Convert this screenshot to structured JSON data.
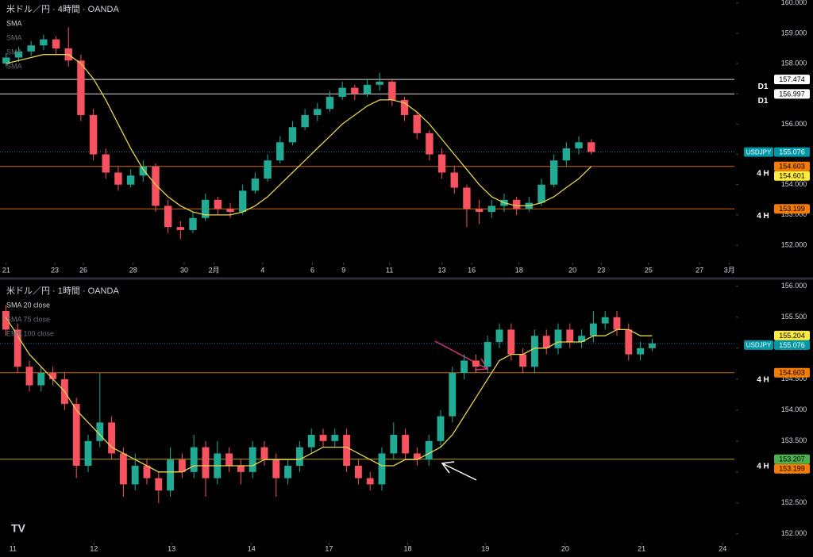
{
  "chart_data": [
    {
      "type": "candlestick",
      "title": "米ドル／円 · 4時間 · OANDA",
      "indicators": [
        {
          "name": "SMA",
          "visible": true
        },
        {
          "name": "SMA",
          "visible": false
        },
        {
          "name": "SMA",
          "visible": false
        },
        {
          "name": "SMA",
          "visible": false
        }
      ],
      "up_color": "#22ab94",
      "down_color": "#f7525f",
      "sma_color": "#e8d44d",
      "ylim": [
        151.45,
        160.1
      ],
      "yticks": [
        {
          "value": 160,
          "label": "160.000"
        },
        {
          "value": 159,
          "label": "159.000"
        },
        {
          "value": 158,
          "label": "158.000"
        },
        {
          "value": 157,
          "label": "157.000"
        },
        {
          "value": 156,
          "label": "156.000"
        },
        {
          "value": 155,
          "label": "155.000"
        },
        {
          "value": 154,
          "label": "154.000"
        },
        {
          "value": 153,
          "label": "153.000"
        },
        {
          "value": 152,
          "label": "152.000"
        }
      ],
      "xlim": [
        -0.5,
        58.5
      ],
      "xticks": [
        {
          "value": 0,
          "label": "21"
        },
        {
          "value": 3.9,
          "label": "23"
        },
        {
          "value": 6.2,
          "label": "26"
        },
        {
          "value": 10.2,
          "label": "28"
        },
        {
          "value": 14.3,
          "label": "30"
        },
        {
          "value": 16.7,
          "label": "2月"
        },
        {
          "value": 20.6,
          "label": "4"
        },
        {
          "value": 24.6,
          "label": "6"
        },
        {
          "value": 27.1,
          "label": "9"
        },
        {
          "value": 30.8,
          "label": "11"
        },
        {
          "value": 35.0,
          "label": "13"
        },
        {
          "value": 37.4,
          "label": "16"
        },
        {
          "value": 41.2,
          "label": "18"
        },
        {
          "value": 45.5,
          "label": "20"
        },
        {
          "value": 47.8,
          "label": "23"
        },
        {
          "value": 51.6,
          "label": "25"
        },
        {
          "value": 55.7,
          "label": "27"
        },
        {
          "value": 58.1,
          "label": "3月"
        }
      ],
      "candles": [
        [
          158.0,
          158.35,
          157.9,
          158.2
        ],
        [
          158.2,
          158.55,
          158.05,
          158.4
        ],
        [
          158.4,
          158.75,
          158.25,
          158.6
        ],
        [
          158.6,
          158.95,
          158.45,
          158.8
        ],
        [
          158.8,
          158.9,
          158.3,
          158.5
        ],
        [
          158.5,
          159.2,
          157.9,
          158.1
        ],
        [
          158.1,
          158.3,
          156.1,
          156.3
        ],
        [
          156.3,
          156.5,
          154.8,
          155.0
        ],
        [
          155.0,
          155.2,
          154.2,
          154.4
        ],
        [
          154.4,
          154.6,
          153.8,
          154.0
        ],
        [
          154.0,
          154.5,
          153.9,
          154.3
        ],
        [
          154.3,
          154.8,
          154.1,
          154.6
        ],
        [
          154.6,
          154.7,
          153.1,
          153.3
        ],
        [
          153.3,
          153.5,
          152.4,
          152.6
        ],
        [
          152.6,
          152.8,
          152.2,
          152.5
        ],
        [
          152.5,
          153.1,
          152.4,
          152.9
        ],
        [
          152.9,
          153.7,
          152.8,
          153.5
        ],
        [
          153.5,
          153.6,
          153.0,
          153.2
        ],
        [
          153.2,
          153.4,
          152.9,
          153.1
        ],
        [
          153.1,
          154.0,
          153.0,
          153.8
        ],
        [
          153.8,
          154.4,
          153.7,
          154.2
        ],
        [
          154.2,
          155.0,
          154.1,
          154.8
        ],
        [
          154.8,
          155.6,
          154.7,
          155.4
        ],
        [
          155.4,
          156.1,
          155.3,
          155.9
        ],
        [
          155.9,
          156.5,
          155.8,
          156.3
        ],
        [
          156.3,
          156.7,
          156.1,
          156.5
        ],
        [
          156.5,
          157.1,
          156.4,
          156.9
        ],
        [
          156.9,
          157.4,
          156.8,
          157.2
        ],
        [
          157.2,
          157.3,
          156.8,
          157.0
        ],
        [
          157.0,
          157.5,
          156.9,
          157.3
        ],
        [
          157.3,
          157.7,
          157.1,
          157.4
        ],
        [
          157.4,
          157.5,
          156.6,
          156.8
        ],
        [
          156.8,
          156.9,
          156.1,
          156.3
        ],
        [
          156.3,
          156.4,
          155.5,
          155.7
        ],
        [
          155.7,
          155.8,
          154.8,
          155.0
        ],
        [
          155.0,
          155.2,
          154.2,
          154.4
        ],
        [
          154.4,
          154.6,
          153.7,
          153.9
        ],
        [
          153.9,
          154.0,
          152.6,
          153.2
        ],
        [
          153.2,
          153.5,
          152.7,
          153.1
        ],
        [
          153.1,
          153.5,
          152.9,
          153.3
        ],
        [
          153.3,
          153.7,
          153.1,
          153.5
        ],
        [
          153.5,
          153.6,
          153.0,
          153.2
        ],
        [
          153.2,
          153.6,
          153.1,
          153.4
        ],
        [
          153.4,
          154.2,
          153.3,
          154.0
        ],
        [
          154.0,
          155.0,
          153.9,
          154.8
        ],
        [
          154.8,
          155.4,
          154.6,
          155.2
        ],
        [
          155.2,
          155.6,
          155.0,
          155.4
        ],
        [
          155.4,
          155.5,
          155.0,
          155.08
        ]
      ],
      "sma_values": [
        158.0,
        158.1,
        158.2,
        158.3,
        158.3,
        158.3,
        158.0,
        157.5,
        156.8,
        156.0,
        155.2,
        154.5,
        154.0,
        153.6,
        153.3,
        153.1,
        153.0,
        153.0,
        153.0,
        153.1,
        153.3,
        153.6,
        154.0,
        154.4,
        154.8,
        155.2,
        155.6,
        156.0,
        156.3,
        156.6,
        156.8,
        156.8,
        156.7,
        156.4,
        156.0,
        155.5,
        155.0,
        154.5,
        154.0,
        153.6,
        153.4,
        153.3,
        153.3,
        153.4,
        153.6,
        153.9,
        154.2,
        154.6
      ],
      "levels": [
        {
          "value": 157.474,
          "color": "#ffffff",
          "text_color": "#000000",
          "style": "solid",
          "tag": "D1"
        },
        {
          "value": 156.997,
          "color": "#ffffff",
          "text_color": "#000000",
          "style": "solid",
          "tag": "D1"
        },
        {
          "value": 155.076,
          "name": "USDJPY",
          "color": "#0097a7",
          "text_color": "#ffffff",
          "style": "dotted"
        },
        {
          "value": 154.603,
          "color": "#f57c00",
          "text_color": "#000000",
          "style": "solid",
          "tag": "4 H"
        },
        {
          "value": 154.601,
          "color": "#ffeb3b",
          "text_color": "#000000",
          "style": "none"
        },
        {
          "value": 153.199,
          "color": "#f57c00",
          "text_color": "#000000",
          "style": "solid",
          "tag": "4 H"
        }
      ]
    },
    {
      "type": "candlestick",
      "title": "米ドル／円 · 1時間 · OANDA",
      "indicators": [
        {
          "name": "SMA 20 close",
          "visible": true
        },
        {
          "name": "SMA 75 close",
          "visible": false
        },
        {
          "name": "EMA 100 close",
          "visible": false
        }
      ],
      "up_color": "#22ab94",
      "down_color": "#f7525f",
      "sma_color": "#e8d44d",
      "ylim": [
        151.87,
        156.1
      ],
      "yticks": [
        {
          "value": 156,
          "label": "156.000"
        },
        {
          "value": 155.5,
          "label": "155.500"
        },
        {
          "value": 155,
          "label": "155.000"
        },
        {
          "value": 154.5,
          "label": "154.500"
        },
        {
          "value": 154,
          "label": "154.000"
        },
        {
          "value": 153.5,
          "label": "153.500"
        },
        {
          "value": 153,
          "label": "153.000"
        },
        {
          "value": 152.5,
          "label": "152.500"
        },
        {
          "value": 152,
          "label": "152.000"
        }
      ],
      "xlim": [
        -0.5,
        62
      ],
      "xticks": [
        {
          "value": 0.6,
          "label": "11"
        },
        {
          "value": 7.5,
          "label": "12"
        },
        {
          "value": 14.1,
          "label": "13"
        },
        {
          "value": 20.9,
          "label": "14"
        },
        {
          "value": 27.5,
          "label": "17"
        },
        {
          "value": 34.2,
          "label": "18"
        },
        {
          "value": 40.8,
          "label": "19"
        },
        {
          "value": 47.6,
          "label": "20"
        },
        {
          "value": 54.1,
          "label": "21"
        },
        {
          "value": 61.0,
          "label": "24"
        }
      ],
      "candles": [
        [
          155.6,
          155.7,
          155.2,
          155.3
        ],
        [
          155.3,
          155.4,
          154.6,
          154.7
        ],
        [
          154.7,
          154.8,
          154.3,
          154.4
        ],
        [
          154.4,
          154.7,
          154.3,
          154.6
        ],
        [
          154.6,
          154.7,
          154.4,
          154.5
        ],
        [
          154.5,
          154.6,
          154.0,
          154.1
        ],
        [
          154.1,
          154.2,
          152.9,
          153.1
        ],
        [
          153.1,
          153.6,
          153.0,
          153.5
        ],
        [
          153.5,
          154.6,
          153.4,
          153.8
        ],
        [
          153.8,
          153.9,
          153.2,
          153.3
        ],
        [
          153.3,
          153.4,
          152.6,
          152.8
        ],
        [
          152.8,
          153.3,
          152.7,
          153.1
        ],
        [
          153.1,
          153.2,
          152.8,
          152.9
        ],
        [
          152.9,
          153.0,
          152.5,
          152.7
        ],
        [
          152.7,
          153.4,
          152.6,
          153.2
        ],
        [
          153.2,
          153.3,
          152.9,
          153.0
        ],
        [
          153.0,
          153.6,
          152.9,
          153.4
        ],
        [
          153.4,
          153.5,
          152.6,
          152.9
        ],
        [
          152.9,
          153.5,
          152.8,
          153.3
        ],
        [
          153.3,
          153.4,
          153.0,
          153.1
        ],
        [
          153.1,
          153.2,
          152.8,
          153.0
        ],
        [
          153.0,
          153.5,
          152.9,
          153.4
        ],
        [
          153.4,
          153.5,
          153.1,
          153.2
        ],
        [
          153.2,
          153.3,
          152.6,
          152.9
        ],
        [
          152.9,
          153.2,
          152.8,
          153.1
        ],
        [
          153.1,
          153.5,
          153.0,
          153.4
        ],
        [
          153.4,
          153.7,
          153.3,
          153.6
        ],
        [
          153.6,
          153.7,
          153.4,
          153.5
        ],
        [
          153.5,
          153.7,
          153.4,
          153.6
        ],
        [
          153.6,
          153.7,
          153.0,
          153.1
        ],
        [
          153.1,
          153.2,
          152.8,
          152.9
        ],
        [
          152.9,
          153.0,
          152.7,
          152.8
        ],
        [
          152.8,
          153.4,
          152.7,
          153.3
        ],
        [
          153.3,
          153.8,
          153.2,
          153.6
        ],
        [
          153.6,
          153.7,
          153.2,
          153.3
        ],
        [
          153.3,
          153.4,
          153.1,
          153.2
        ],
        [
          153.2,
          153.6,
          153.1,
          153.5
        ],
        [
          153.5,
          154.0,
          153.4,
          153.9
        ],
        [
          153.9,
          154.7,
          153.8,
          154.6
        ],
        [
          154.6,
          154.9,
          154.5,
          154.8
        ],
        [
          154.8,
          154.9,
          154.6,
          154.7
        ],
        [
          154.7,
          155.2,
          154.6,
          155.1
        ],
        [
          155.1,
          155.4,
          155.0,
          155.3
        ],
        [
          155.3,
          155.4,
          154.8,
          154.9
        ],
        [
          154.9,
          155.0,
          154.6,
          154.7
        ],
        [
          154.7,
          155.3,
          154.6,
          155.2
        ],
        [
          155.2,
          155.3,
          154.9,
          155.0
        ],
        [
          155.0,
          155.4,
          154.9,
          155.3
        ],
        [
          155.3,
          155.4,
          155.0,
          155.1
        ],
        [
          155.1,
          155.3,
          155.0,
          155.2
        ],
        [
          155.2,
          155.6,
          155.1,
          155.4
        ],
        [
          155.4,
          155.6,
          155.3,
          155.5
        ],
        [
          155.5,
          155.6,
          155.2,
          155.3
        ],
        [
          155.3,
          155.4,
          154.8,
          154.9
        ],
        [
          154.9,
          155.1,
          154.8,
          155.0
        ],
        [
          155.0,
          155.15,
          154.95,
          155.076
        ]
      ],
      "sma_values": [
        155.5,
        155.2,
        154.9,
        154.7,
        154.5,
        154.3,
        154.0,
        153.8,
        153.6,
        153.4,
        153.3,
        153.2,
        153.1,
        153.0,
        153.0,
        153.0,
        153.1,
        153.1,
        153.1,
        153.1,
        153.1,
        153.1,
        153.2,
        153.2,
        153.2,
        153.2,
        153.3,
        153.4,
        153.4,
        153.4,
        153.3,
        153.2,
        153.1,
        153.1,
        153.2,
        153.2,
        153.3,
        153.4,
        153.6,
        153.9,
        154.2,
        154.5,
        154.8,
        154.9,
        154.9,
        155.0,
        155.0,
        155.1,
        155.1,
        155.1,
        155.2,
        155.2,
        155.3,
        155.3,
        155.2,
        155.2
      ],
      "levels": [
        {
          "value": 155.204,
          "color": "#ffeb3b",
          "text_color": "#000000",
          "style": "none"
        },
        {
          "value": 155.076,
          "name": "USDJPY",
          "color": "#0097a7",
          "text_color": "#ffffff",
          "style": "dotted"
        },
        {
          "value": 154.603,
          "color": "#f57c00",
          "text_color": "#000000",
          "style": "solid",
          "tag": "4 H"
        },
        {
          "value": 153.207,
          "color": "#4caf50",
          "line_color": "#d4c21a",
          "text_color": "#000000",
          "style": "solid",
          "tag": "4 H"
        },
        {
          "value": 153.199,
          "color": "#f57c00",
          "text_color": "#000000",
          "style": "none"
        }
      ]
    }
  ]
}
